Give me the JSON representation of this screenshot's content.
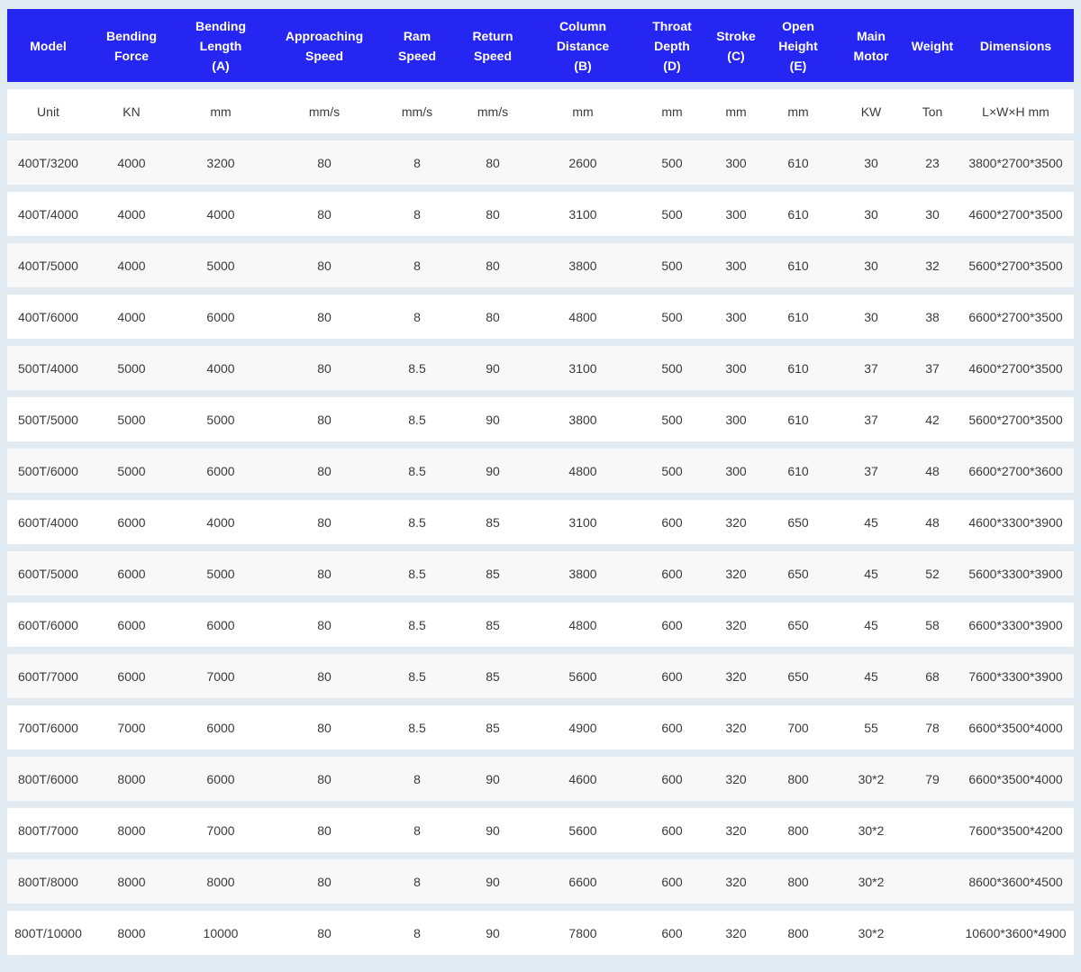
{
  "colors": {
    "header_bg": "#2626f2",
    "header_text": "#ffffff",
    "page_bg": "#e3ebf2",
    "row_alt": "#f8f8f8"
  },
  "table": {
    "headers": [
      [
        "Model"
      ],
      [
        "Bending",
        "Force"
      ],
      [
        "Bending",
        "Length",
        "(A)"
      ],
      [
        "Approaching",
        "Speed"
      ],
      [
        "Ram",
        "Speed"
      ],
      [
        "Return",
        "Speed"
      ],
      [
        "Column",
        "Distance",
        "(B)"
      ],
      [
        "Throat",
        "Depth",
        "(D)"
      ],
      [
        "Stroke",
        "(C)"
      ],
      [
        "Open",
        "Height",
        "(E)"
      ],
      [
        "Main",
        "Motor"
      ],
      [
        "Weight"
      ],
      [
        "Dimensions"
      ]
    ],
    "units": [
      "Unit",
      "KN",
      "mm",
      "mm/s",
      "mm/s",
      "mm/s",
      "mm",
      "mm",
      "mm",
      "mm",
      "KW",
      "Ton",
      "L×W×H mm"
    ],
    "rows": [
      [
        "400T/3200",
        "4000",
        "3200",
        "80",
        "8",
        "80",
        "2600",
        "500",
        "300",
        "610",
        "30",
        "23",
        "3800*2700*3500"
      ],
      [
        "400T/4000",
        "4000",
        "4000",
        "80",
        "8",
        "80",
        "3100",
        "500",
        "300",
        "610",
        "30",
        "30",
        "4600*2700*3500"
      ],
      [
        "400T/5000",
        "4000",
        "5000",
        "80",
        "8",
        "80",
        "3800",
        "500",
        "300",
        "610",
        "30",
        "32",
        "5600*2700*3500"
      ],
      [
        "400T/6000",
        "4000",
        "6000",
        "80",
        "8",
        "80",
        "4800",
        "500",
        "300",
        "610",
        "30",
        "38",
        "6600*2700*3500"
      ],
      [
        "500T/4000",
        "5000",
        "4000",
        "80",
        "8.5",
        "90",
        "3100",
        "500",
        "300",
        "610",
        "37",
        "37",
        "4600*2700*3500"
      ],
      [
        "500T/5000",
        "5000",
        "5000",
        "80",
        "8.5",
        "90",
        "3800",
        "500",
        "300",
        "610",
        "37",
        "42",
        "5600*2700*3500"
      ],
      [
        "500T/6000",
        "5000",
        "6000",
        "80",
        "8.5",
        "90",
        "4800",
        "500",
        "300",
        "610",
        "37",
        "48",
        "6600*2700*3600"
      ],
      [
        "600T/4000",
        "6000",
        "4000",
        "80",
        "8.5",
        "85",
        "3100",
        "600",
        "320",
        "650",
        "45",
        "48",
        "4600*3300*3900"
      ],
      [
        "600T/5000",
        "6000",
        "5000",
        "80",
        "8.5",
        "85",
        "3800",
        "600",
        "320",
        "650",
        "45",
        "52",
        "5600*3300*3900"
      ],
      [
        "600T/6000",
        "6000",
        "6000",
        "80",
        "8.5",
        "85",
        "4800",
        "600",
        "320",
        "650",
        "45",
        "58",
        "6600*3300*3900"
      ],
      [
        "600T/7000",
        "6000",
        "7000",
        "80",
        "8.5",
        "85",
        "5600",
        "600",
        "320",
        "650",
        "45",
        "68",
        "7600*3300*3900"
      ],
      [
        "700T/6000",
        "7000",
        "6000",
        "80",
        "8.5",
        "85",
        "4900",
        "600",
        "320",
        "700",
        "55",
        "78",
        "6600*3500*4000"
      ],
      [
        "800T/6000",
        "8000",
        "6000",
        "80",
        "8",
        "90",
        "4600",
        "600",
        "320",
        "800",
        "30*2",
        "79",
        "6600*3500*4000"
      ],
      [
        "800T/7000",
        "8000",
        "7000",
        "80",
        "8",
        "90",
        "5600",
        "600",
        "320",
        "800",
        "30*2",
        "",
        "7600*3500*4200"
      ],
      [
        "800T/8000",
        "8000",
        "8000",
        "80",
        "8",
        "90",
        "6600",
        "600",
        "320",
        "800",
        "30*2",
        "",
        "8600*3600*4500"
      ],
      [
        "800T/10000",
        "8000",
        "10000",
        "80",
        "8",
        "90",
        "7800",
        "600",
        "320",
        "800",
        "30*2",
        "",
        "10600*3600*4900"
      ]
    ]
  }
}
